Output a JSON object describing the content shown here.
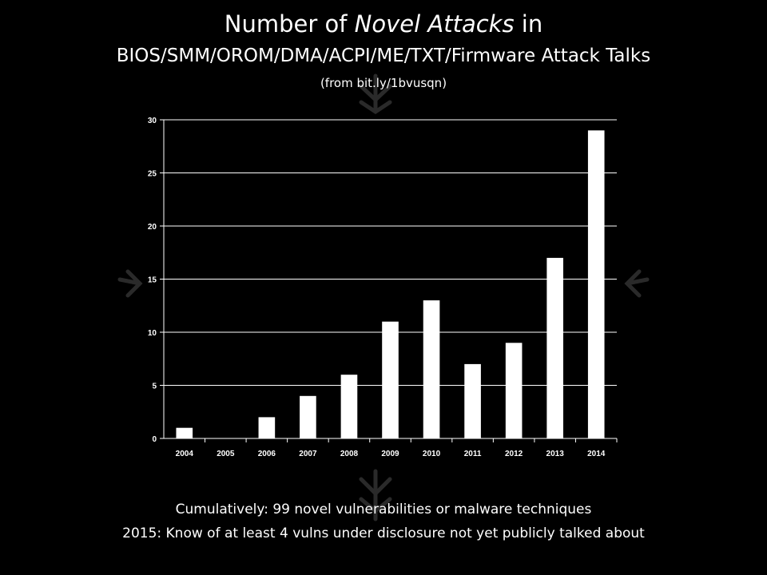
{
  "header": {
    "title_prefix": "Number of ",
    "title_emphasis": "Novel Attacks",
    "title_suffix": " in",
    "title_line2": "BIOS/SMM/OROM/DMA/ACPI/ME/TXT/Firmware Attack Talks",
    "subtitle": "(from bit.ly/1bvusqn)"
  },
  "chart_data": {
    "type": "bar",
    "categories": [
      "2004",
      "2005",
      "2006",
      "2007",
      "2008",
      "2009",
      "2010",
      "2011",
      "2012",
      "2013",
      "2014"
    ],
    "values": [
      1,
      0,
      2,
      4,
      6,
      11,
      13,
      7,
      9,
      17,
      29
    ],
    "ylim": [
      0,
      30
    ],
    "yticks": [
      0,
      5,
      10,
      15,
      20,
      25,
      30
    ],
    "grid": true,
    "bar_color": "#ffffff",
    "grid_color": "#ffffff"
  },
  "footer": {
    "line1": "Cumulatively: 99 novel vulnerabilities or malware techniques",
    "line2": "2015: Know of at least 4 vulns under disclosure not yet publicly talked about"
  }
}
